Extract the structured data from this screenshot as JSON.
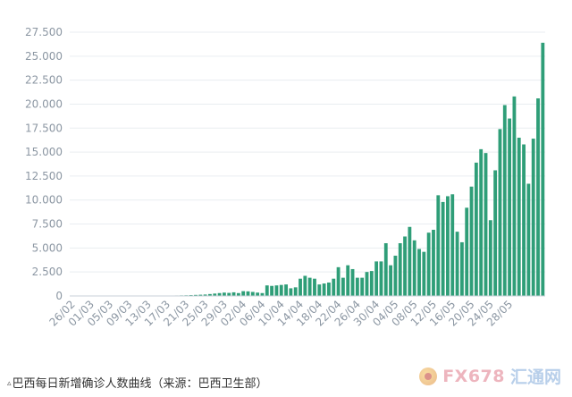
{
  "chart_data": {
    "type": "bar",
    "title": "巴西每日新增确诊人数曲线（来源：巴西卫生部）",
    "ylim": [
      0,
      27500
    ],
    "yticks": [
      0,
      2500,
      5000,
      7500,
      10000,
      12500,
      15000,
      17500,
      20000,
      22500,
      25000,
      27500
    ],
    "ytick_labels": [
      "0",
      "2.500",
      "5.000",
      "7.500",
      "10.000",
      "12.500",
      "15.000",
      "17.500",
      "20.000",
      "22.500",
      "25.000",
      "27.500"
    ],
    "xtick_labels": [
      "26/02",
      "01/03",
      "05/03",
      "09/03",
      "13/03",
      "17/03",
      "21/03",
      "25/03",
      "29/03",
      "02/04",
      "06/04",
      "10/04",
      "14/04",
      "18/04",
      "22/04",
      "26/04",
      "30/04",
      "04/05",
      "08/05",
      "12/05",
      "16/05",
      "20/05",
      "24/05",
      "28/05"
    ],
    "color": "#2f9e78",
    "grid": true,
    "values": [
      1,
      0,
      0,
      1,
      0,
      0,
      1,
      0,
      3,
      5,
      2,
      5,
      3,
      8,
      6,
      8,
      12,
      15,
      20,
      25,
      30,
      40,
      50,
      60,
      70,
      90,
      110,
      130,
      150,
      200,
      250,
      300,
      350,
      320,
      380,
      300,
      500,
      480,
      420,
      350,
      300,
      1100,
      1050,
      1100,
      1150,
      1200,
      800,
      900,
      1800,
      2100,
      1900,
      1800,
      1200,
      1300,
      1400,
      1800,
      3000,
      1900,
      3200,
      2800,
      1900,
      1900,
      2500,
      2600,
      3600,
      3600,
      5500,
      3200,
      4200,
      5500,
      6200,
      7200,
      5800,
      4900,
      4600,
      6600,
      6900,
      10500,
      9800,
      10400,
      10600,
      6700,
      5600,
      9200,
      11400,
      13900,
      15300,
      14900,
      7900,
      13100,
      17400,
      19900,
      18500,
      20800,
      16500,
      15800,
      11700,
      16400,
      20600,
      26400
    ]
  },
  "caption": {
    "icon": "▵",
    "text": "巴西每日新增确诊人数曲线（来源：巴西卫生部）"
  },
  "watermark": {
    "brand": "FX678",
    "cn": "汇通网"
  }
}
